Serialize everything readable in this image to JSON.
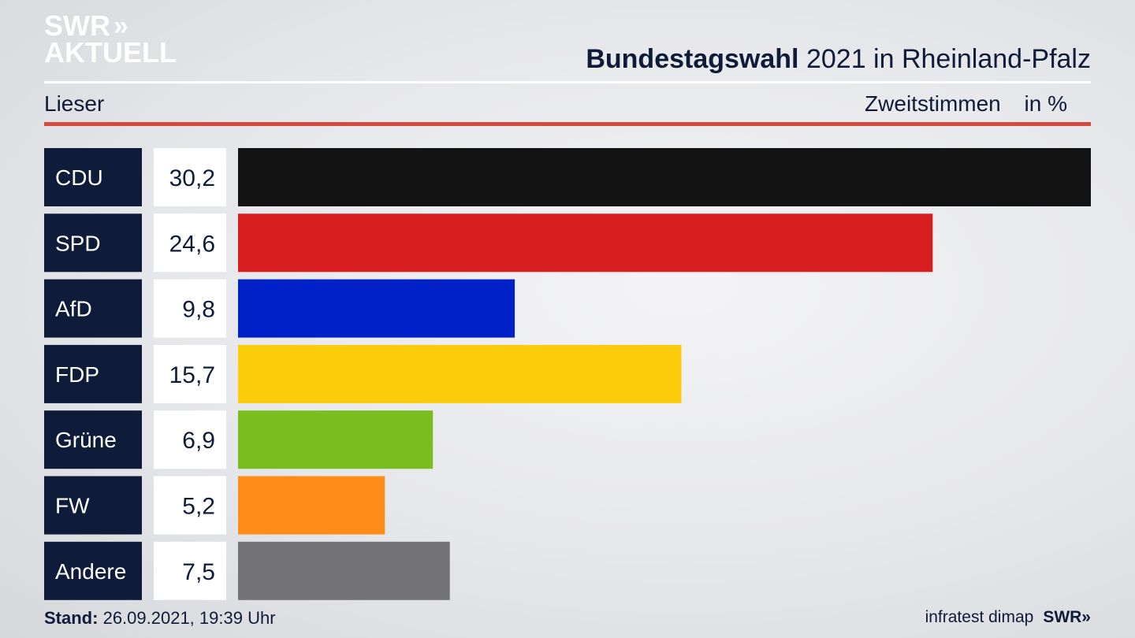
{
  "brand": {
    "logo_line1": "SWR",
    "logo_chevrons": "»",
    "logo_line2": "AKTUELL",
    "footer_logo": "SWR»"
  },
  "header": {
    "title_bold": "Bundestagswahl",
    "title_rest": "2021 in Rheinland-Pfalz",
    "region": "Lieser",
    "measure": "Zweitstimmen",
    "unit": "in %"
  },
  "footer": {
    "stand_label": "Stand:",
    "stand_value": "26.09.2021, 19:39 Uhr",
    "source": "infratest dimap"
  },
  "colors": {
    "label_bg": "#0e1c3a",
    "accent_red": "#d44a3c"
  },
  "chart_data": {
    "type": "bar",
    "orientation": "horizontal",
    "title": "Bundestagswahl 2021 in Rheinland-Pfalz",
    "categories": [
      "CDU",
      "SPD",
      "AfD",
      "FDP",
      "Grüne",
      "FW",
      "Andere"
    ],
    "values": [
      30.2,
      24.6,
      9.8,
      15.7,
      6.9,
      5.2,
      7.5
    ],
    "value_labels": [
      "30,2",
      "24,6",
      "9,8",
      "15,7",
      "6,9",
      "5,2",
      "7,5"
    ],
    "colors": [
      "#131313",
      "#d81f20",
      "#0021c8",
      "#fccc0b",
      "#79bd1f",
      "#fd8c18",
      "#737375"
    ],
    "xlim": [
      0,
      30.2
    ],
    "grid": false,
    "legend": "none"
  }
}
